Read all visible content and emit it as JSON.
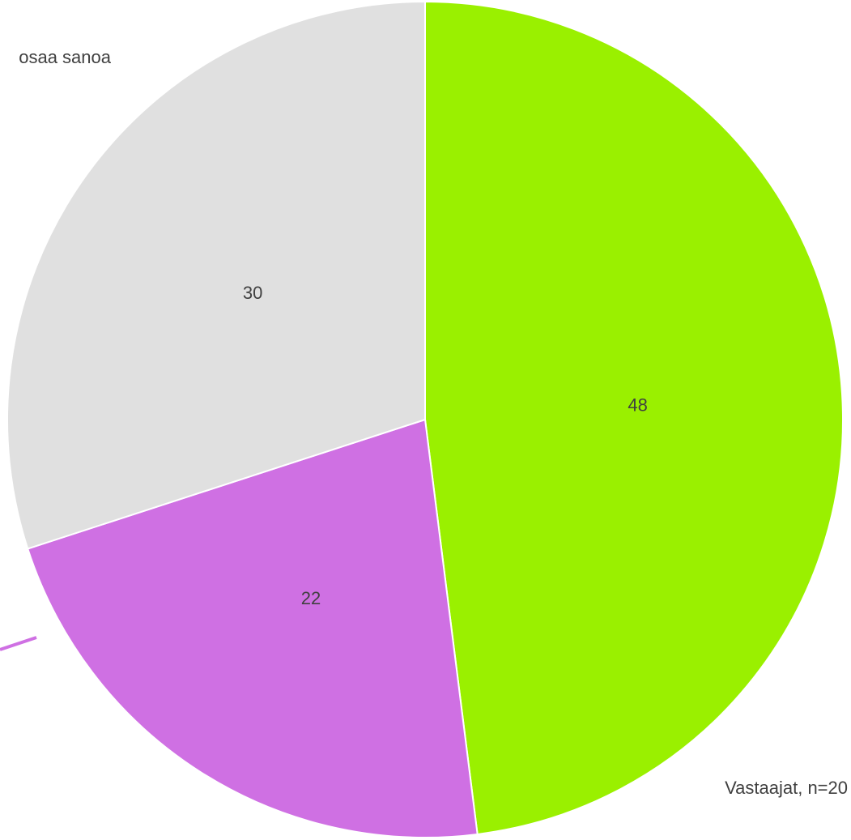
{
  "chart_data": {
    "type": "pie",
    "categories": [
      null,
      null,
      "osaa sanoa"
    ],
    "values": [
      48,
      22,
      30
    ],
    "colors": [
      "#9af000",
      "#cf70e3",
      "#e0e0e0"
    ],
    "note": "Vastaajat, n=20"
  }
}
